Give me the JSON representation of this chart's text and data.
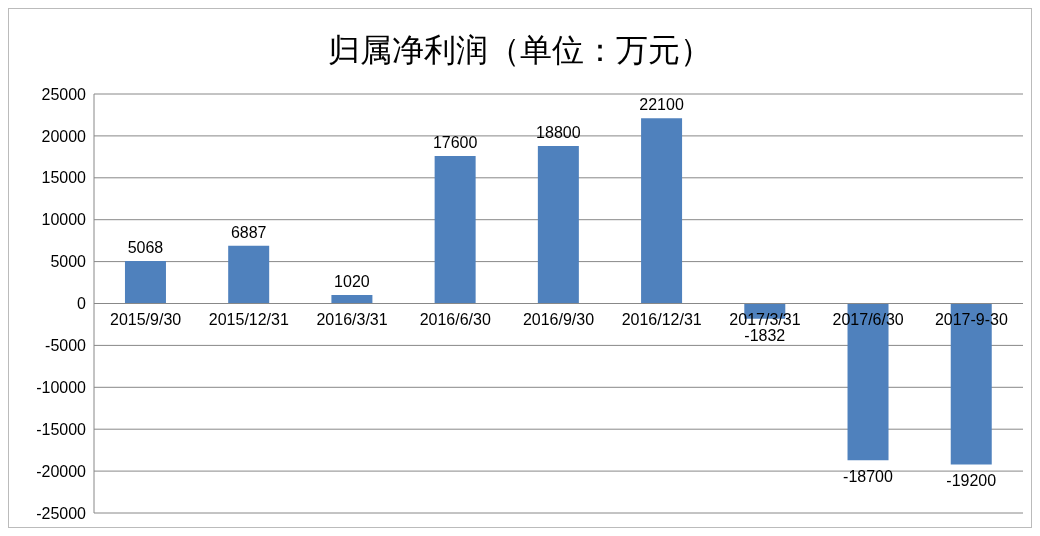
{
  "chart_data": {
    "type": "bar",
    "title": "归属净利润（单位：万元）",
    "categories": [
      "2015/9/30",
      "2015/12/31",
      "2016/3/31",
      "2016/6/30",
      "2016/9/30",
      "2016/12/31",
      "2017/3/31",
      "2017/6/30",
      "2017-9-30"
    ],
    "values": [
      5068,
      6887,
      1020,
      17600,
      18800,
      22100,
      -1832,
      -18700,
      -19200
    ],
    "color": "#4f81bd",
    "ylim": [
      -25000,
      25000
    ],
    "yticks": [
      -25000,
      -20000,
      -15000,
      -10000,
      -5000,
      0,
      5000,
      10000,
      15000,
      20000,
      25000
    ],
    "grid": "y",
    "data_labels": true
  }
}
